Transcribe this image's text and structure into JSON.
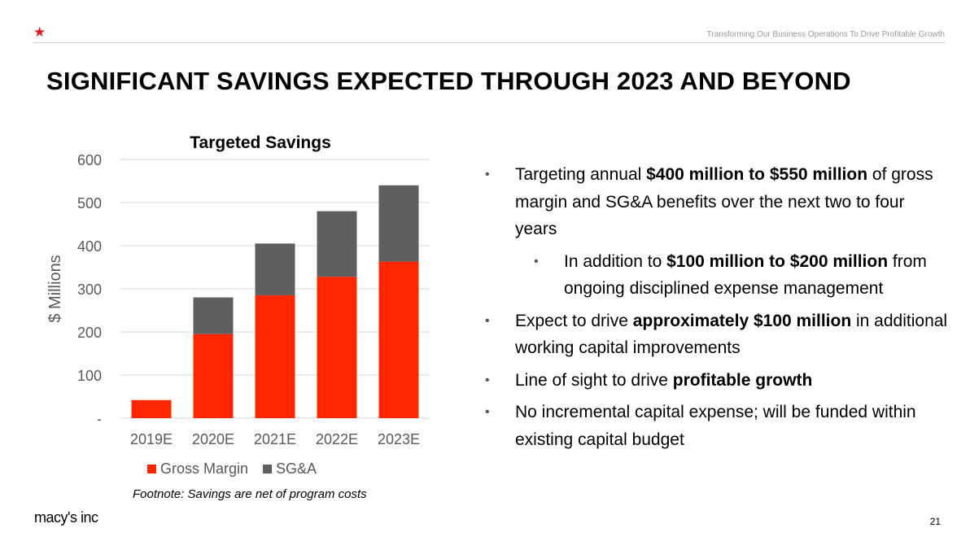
{
  "header": {
    "star_icon": "star-icon",
    "tagline": "Transforming Our Business Operations To Drive Profitable Growth"
  },
  "title": "SIGNIFICANT SAVINGS EXPECTED THROUGH 2023 AND BEYOND",
  "chart_data": {
    "type": "bar",
    "stacked": true,
    "title": "Targeted Savings",
    "ylabel": "$ Millions",
    "xlabel": "",
    "ylim": [
      0,
      600
    ],
    "yticks": [
      "-",
      "100",
      "200",
      "300",
      "400",
      "500",
      "600"
    ],
    "grid": true,
    "legend": "bottom",
    "categories": [
      "2019E",
      "2020E",
      "2021E",
      "2022E",
      "2023E"
    ],
    "series": [
      {
        "name": "Gross Margin",
        "color": "#ff2600",
        "values": [
          42,
          195,
          285,
          328,
          363
        ]
      },
      {
        "name": "SG&A",
        "color": "#5f5f5f",
        "values": [
          0,
          85,
          120,
          152,
          177
        ]
      }
    ]
  },
  "footnote": "Footnote: Savings are net of program costs",
  "bullets": [
    {
      "pre": "Targeting annual ",
      "bold": "$400 million to $550 million",
      "post": " of gross margin and SG&A benefits over the next two to four years"
    },
    {
      "pre": "In addition to ",
      "bold": "$100 million to $200 million",
      "post": " from ongoing disciplined expense management"
    },
    {
      "pre": "Expect to drive ",
      "bold": "approximately $100 million",
      "post": " in additional working capital improvements"
    },
    {
      "pre": "Line of sight to drive ",
      "bold": "profitable growth",
      "post": ""
    },
    {
      "pre": "No incremental capital expense; will be funded within existing capital budget",
      "bold": "",
      "post": ""
    }
  ],
  "footer": {
    "logo": "macy's inc",
    "page": "21"
  }
}
